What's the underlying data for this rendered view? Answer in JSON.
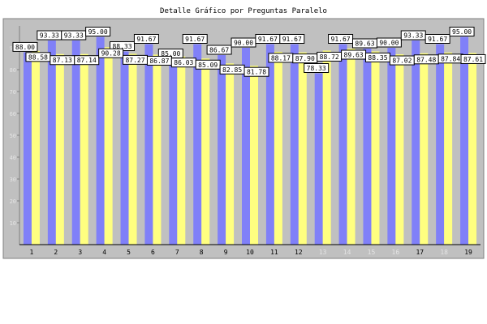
{
  "chart_data": {
    "type": "bar",
    "title": "Detalle Gráfico por Preguntas Paralelo",
    "xlabel": "",
    "ylabel": "",
    "ylim": [
      0,
      100
    ],
    "yticks": [
      10,
      20,
      30,
      40,
      50,
      60,
      70,
      80,
      90
    ],
    "grid": false,
    "legend": "none",
    "categories": [
      "1",
      "2",
      "3",
      "4",
      "5",
      "6",
      "7",
      "8",
      "9",
      "10",
      "11",
      "12",
      "13",
      "14",
      "15",
      "16",
      "17",
      "18",
      "19"
    ],
    "series": [
      {
        "color": "#8080f8",
        "values": [
          88.0,
          93.33,
          93.33,
          95.0,
          88.33,
          91.67,
          85.0,
          91.67,
          86.67,
          90.0,
          91.67,
          91.67,
          78.33,
          91.67,
          89.63,
          90.0,
          93.33,
          91.67,
          95.0
        ]
      },
      {
        "color": "#ffff80",
        "values": [
          88.58,
          87.13,
          87.14,
          90.28,
          87.27,
          86.87,
          86.03,
          85.09,
          82.85,
          81.78,
          88.17,
          87.9,
          88.72,
          89.63,
          88.35,
          87.02,
          87.48,
          87.84,
          87.61
        ]
      }
    ],
    "colors": {
      "plot_background": "#c0c0c0",
      "frame_background": "#c0c0c0",
      "label_box": "#ffffff",
      "axis_text": "#000000",
      "faded_tick_text": "#e4e4e4"
    }
  }
}
